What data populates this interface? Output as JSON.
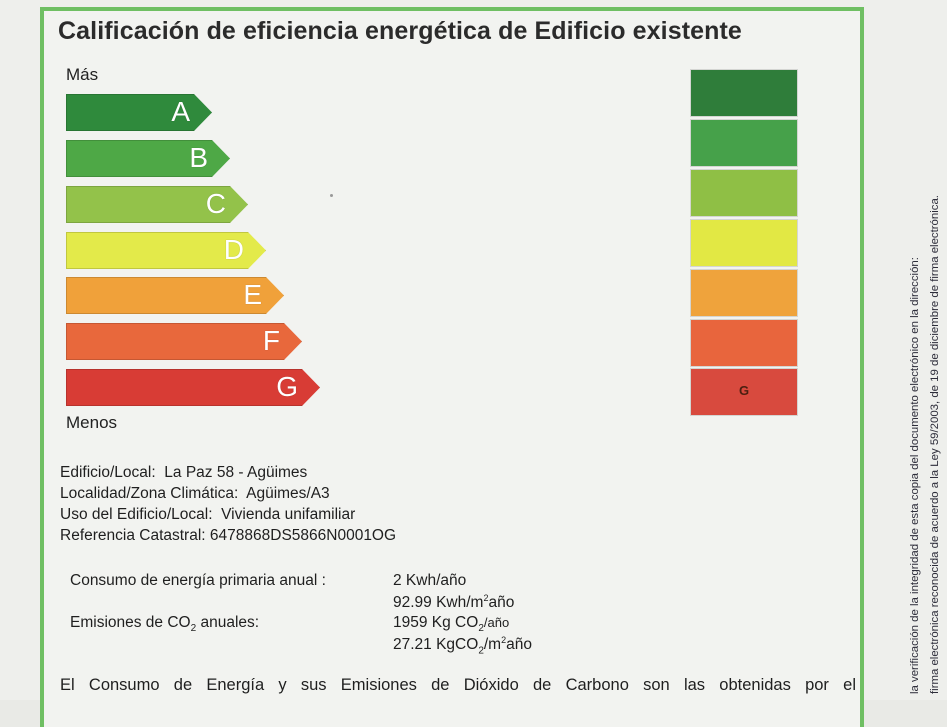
{
  "certificate": {
    "title": "Calificación de eficiencia energética de Edificio existente",
    "scale_top_label": "Más",
    "scale_bottom_label": "Menos",
    "ratings": [
      {
        "letter": "A",
        "color": "#2f8a3c"
      },
      {
        "letter": "B",
        "color": "#4ea846"
      },
      {
        "letter": "C",
        "color": "#93c24a"
      },
      {
        "letter": "D",
        "color": "#e3ea4a"
      },
      {
        "letter": "E",
        "color": "#f0a13a"
      },
      {
        "letter": "F",
        "color": "#e8683c"
      },
      {
        "letter": "G",
        "color": "#d83c35"
      }
    ],
    "current_rating": "G",
    "current_rating_color": "#d84a3e",
    "building": {
      "edificio_label": "Edificio/Local:",
      "edificio_value": "La Paz 58 - Agüimes",
      "localidad_label": "Localidad/Zona Climática:",
      "localidad_value": "Agüimes/A3",
      "uso_label": "Uso del Edificio/Local:",
      "uso_value": "Vivienda unifamiliar",
      "referencia_label": "Referencia Catastral:",
      "referencia_value": "6478868DS5866N0001OG"
    },
    "consumption": {
      "energy_label": "Consumo de energía primaria anual :",
      "energy_value_1": "2 Kwh/año",
      "energy_value_2_prefix": "92.99 Kwh/m",
      "energy_value_2_suffix": "año",
      "emissions_label_prefix": "Emisiones de CO",
      "emissions_label_suffix": " anuales:",
      "emissions_value_1_prefix": "1959 Kg CO",
      "emissions_value_1_suffix": "/año",
      "emissions_value_2_prefix": "27.21 KgCO",
      "emissions_value_2_mid": "/m",
      "emissions_value_2_suffix": "año"
    },
    "paragraph": "El Consumo de Energía y sus Emisiones de Dióxido de Carbono son las obtenidas por el"
  },
  "side_note": {
    "line_1": "la verificación de la integridad de esta copia del documento electrónico en la dirección:",
    "line_2": "firma electrónica reconocida de acuerdo a la Ley 59/2003, de 19 de diciembre de firma electrónica."
  }
}
